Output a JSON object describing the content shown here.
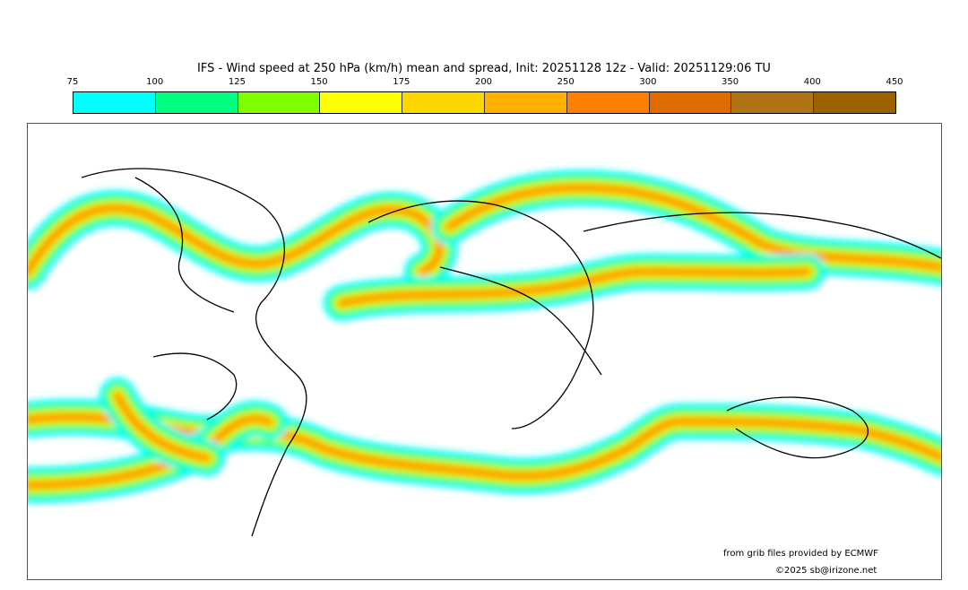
{
  "title": "IFS - Wind speed at 250 hPa (km/h) mean and spread, Init: 20251128 12z - Valid: 20251129:06 TU",
  "colorbar": {
    "ticks": [
      "75",
      "100",
      "125",
      "150",
      "175",
      "200",
      "250",
      "300",
      "350",
      "400",
      "450"
    ],
    "colors": [
      "#00ffff",
      "#00ff80",
      "#80ff00",
      "#ffff00",
      "#ffd700",
      "#ffb000",
      "#ff8000",
      "#e06c00",
      "#b07416",
      "#9b6200"
    ]
  },
  "credits": {
    "source": "from grib files provided by ECMWF",
    "copyright": "©2025 sb@irizone.net"
  }
}
